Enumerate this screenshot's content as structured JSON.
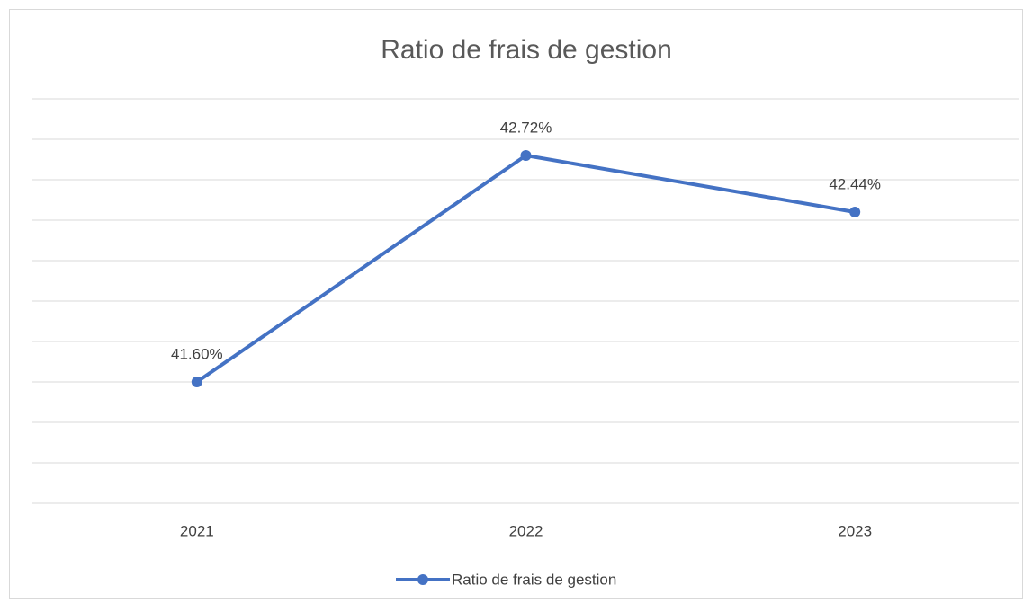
{
  "chart_data": {
    "type": "line",
    "title": "Ratio de frais de gestion",
    "categories": [
      "2021",
      "2022",
      "2023"
    ],
    "series": [
      {
        "name": "Ratio de frais de gestion",
        "color": "#4472c4",
        "values": [
          41.6,
          42.72,
          42.44
        ],
        "value_labels": [
          "41.60%",
          "42.72%",
          "42.44%"
        ]
      }
    ],
    "ylim": [
      41,
      43
    ],
    "yticks": [
      41,
      41.2,
      41.4,
      41.6,
      41.8,
      42,
      42.2,
      42.4,
      42.6,
      42.8,
      43
    ],
    "grid": true,
    "legend": "bottom"
  }
}
